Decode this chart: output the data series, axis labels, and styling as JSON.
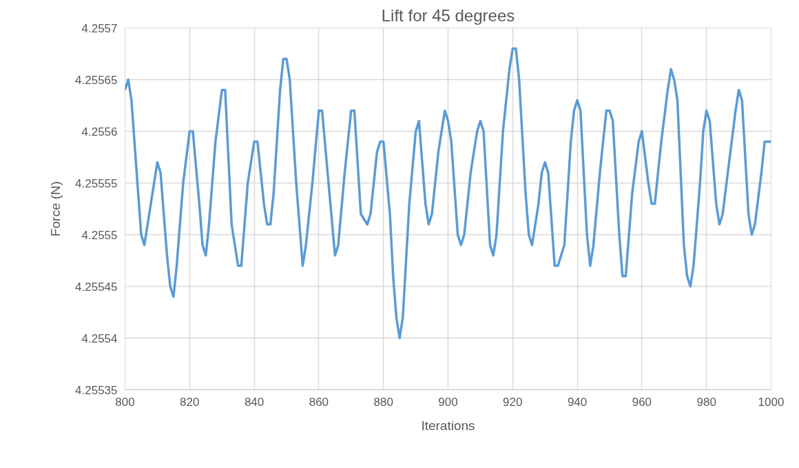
{
  "chart_data": {
    "type": "line",
    "title": "Lift for 45 degrees",
    "xlabel": "Iterations",
    "ylabel": "Force (N)",
    "x": [
      800,
      801,
      802,
      805,
      806,
      808,
      810,
      811,
      813,
      814,
      815,
      816,
      818,
      820,
      821,
      823,
      824,
      825,
      826,
      828,
      830,
      831,
      833,
      835,
      836,
      838,
      840,
      841,
      843,
      844,
      845,
      846,
      848,
      849,
      850,
      851,
      853,
      855,
      856,
      858,
      860,
      861,
      863,
      865,
      866,
      868,
      870,
      871,
      873,
      875,
      876,
      878,
      879,
      880,
      882,
      883,
      884,
      885,
      886,
      888,
      890,
      891,
      893,
      894,
      895,
      897,
      899,
      900,
      901,
      903,
      904,
      905,
      907,
      909,
      910,
      911,
      913,
      914,
      915,
      917,
      919,
      920,
      921,
      922,
      924,
      925,
      926,
      928,
      929,
      930,
      931,
      933,
      934,
      936,
      938,
      939,
      940,
      941,
      943,
      944,
      945,
      947,
      949,
      950,
      951,
      953,
      954,
      955,
      957,
      959,
      960,
      962,
      963,
      964,
      966,
      968,
      969,
      970,
      971,
      973,
      974,
      975,
      976,
      978,
      979,
      980,
      981,
      983,
      984,
      985,
      987,
      989,
      990,
      991,
      993,
      994,
      995,
      997,
      998,
      1000
    ],
    "series": [
      {
        "color": "#5b9bd5",
        "values": [
          4.25564,
          4.25565,
          4.25563,
          4.2555,
          4.25549,
          4.25553,
          4.25557,
          4.25556,
          4.25548,
          4.25545,
          4.25544,
          4.25547,
          4.25555,
          4.2556,
          4.2556,
          4.25553,
          4.25549,
          4.25548,
          4.25551,
          4.25559,
          4.25564,
          4.25564,
          4.25551,
          4.25547,
          4.25547,
          4.25555,
          4.25559,
          4.25559,
          4.25553,
          4.25551,
          4.25551,
          4.25554,
          4.25564,
          4.25567,
          4.25567,
          4.25565,
          4.25555,
          4.25547,
          4.25549,
          4.25555,
          4.25562,
          4.25562,
          4.25555,
          4.25548,
          4.25549,
          4.25556,
          4.25562,
          4.25562,
          4.25552,
          4.25551,
          4.25552,
          4.25558,
          4.25559,
          4.25559,
          4.25552,
          4.25546,
          4.25542,
          4.2554,
          4.25542,
          4.25553,
          4.2556,
          4.25561,
          4.25553,
          4.25551,
          4.25552,
          4.25558,
          4.25562,
          4.25561,
          4.25559,
          4.2555,
          4.25549,
          4.2555,
          4.25556,
          4.2556,
          4.25561,
          4.2556,
          4.25549,
          4.25548,
          4.2555,
          4.2556,
          4.25566,
          4.25568,
          4.25568,
          4.25565,
          4.25554,
          4.2555,
          4.25549,
          4.25553,
          4.25556,
          4.25557,
          4.25556,
          4.25547,
          4.25547,
          4.25549,
          4.25559,
          4.25562,
          4.25563,
          4.25562,
          4.2555,
          4.25547,
          4.25549,
          4.25556,
          4.25562,
          4.25562,
          4.25561,
          4.2555,
          4.25546,
          4.25546,
          4.25554,
          4.25559,
          4.2556,
          4.25555,
          4.25553,
          4.25553,
          4.25559,
          4.25564,
          4.25566,
          4.25565,
          4.25563,
          4.25549,
          4.25546,
          4.25545,
          4.25547,
          4.25555,
          4.2556,
          4.25562,
          4.25561,
          4.25553,
          4.25551,
          4.25552,
          4.25557,
          4.25562,
          4.25564,
          4.25563,
          4.25552,
          4.2555,
          4.25551,
          4.25556,
          4.25559,
          4.25559
        ]
      }
    ],
    "xlim": [
      800,
      1000
    ],
    "xticks": [
      800,
      820,
      840,
      860,
      880,
      900,
      920,
      940,
      960,
      980,
      1000
    ],
    "ylim": [
      4.25535,
      4.2557
    ],
    "yticks": [
      4.25535,
      4.2554,
      4.25545,
      4.2555,
      4.25555,
      4.2556,
      4.25565,
      4.2557
    ],
    "grid": true,
    "marker": "none",
    "line_style": "solid"
  }
}
